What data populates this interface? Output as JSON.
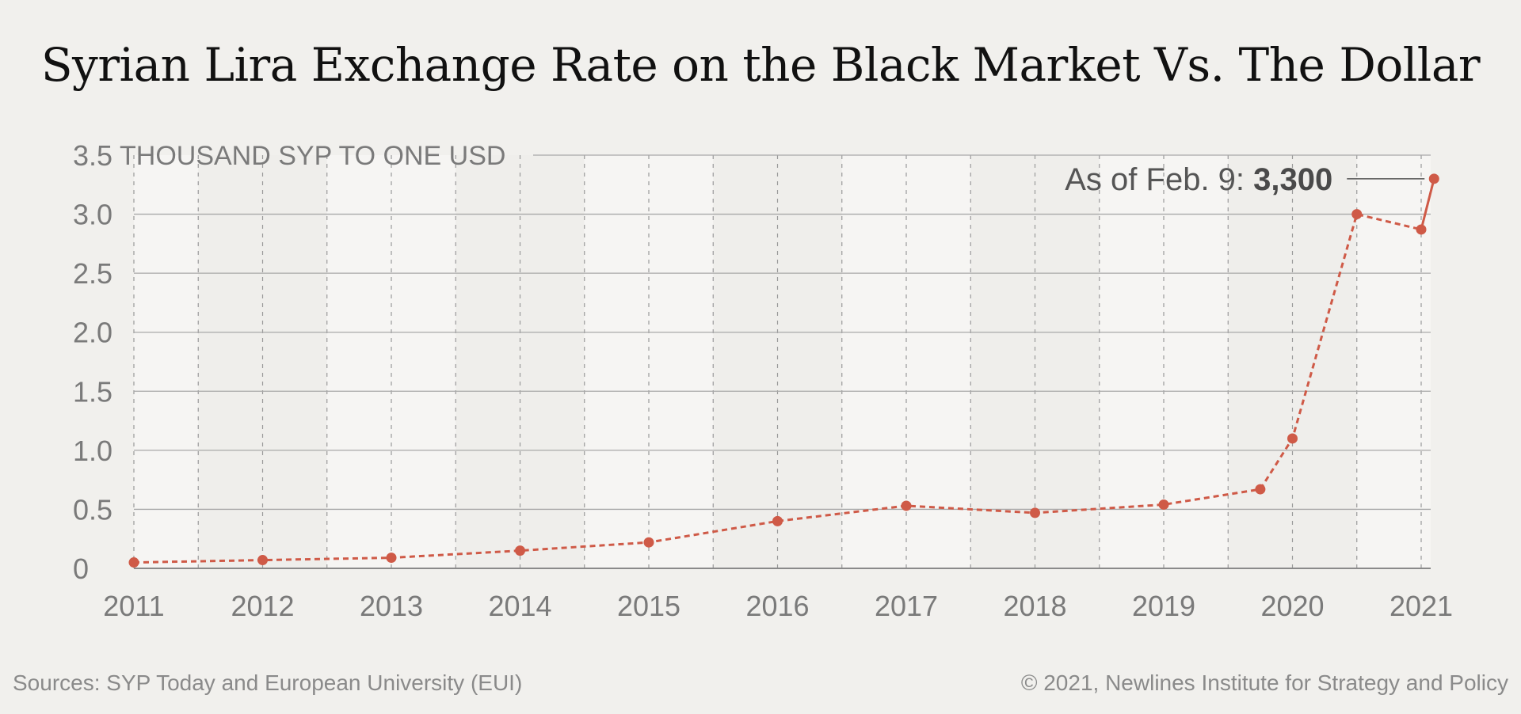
{
  "title": "Syrian Lira Exchange Rate on the Black Market Vs. The Dollar",
  "footer": {
    "source": "Sources: SYP Today and European University (EUI)",
    "copyright": "© 2021, Newlines Institute for Strategy and Policy"
  },
  "colors": {
    "background": "#f1f0ed",
    "band_light": "#f6f5f3",
    "band_dark": "#efeeeb",
    "line": "#cf5a47",
    "grid": "#a8a8a8",
    "text": "#7a7a7a"
  },
  "chart_data": {
    "type": "line",
    "title": "Syrian Lira Exchange Rate on the Black Market Vs. The Dollar",
    "ylabel": "THOUSAND SYP TO ONE USD",
    "xlim": [
      2011,
      2021.1
    ],
    "ylim": [
      0,
      3.5
    ],
    "x_ticks": [
      2011,
      2012,
      2013,
      2014,
      2015,
      2016,
      2017,
      2018,
      2019,
      2020,
      2021
    ],
    "x_tick_labels": [
      "2011",
      "2012",
      "2013",
      "2014",
      "2015",
      "2016",
      "2017",
      "2018",
      "2019",
      "2020",
      "2021"
    ],
    "y_ticks": [
      0,
      0.5,
      1.0,
      1.5,
      2.0,
      2.5,
      3.0,
      3.5
    ],
    "y_tick_labels": [
      "0",
      "0.5",
      "1.0",
      "1.5",
      "2.0",
      "2.5",
      "3.0",
      "3.5"
    ],
    "grid": true,
    "series": [
      {
        "x": [
          2011,
          2012,
          2013,
          2014,
          2015,
          2016,
          2017,
          2018,
          2019,
          2019.75,
          2020,
          2020.5,
          2021,
          2021.1
        ],
        "values": [
          0.05,
          0.07,
          0.09,
          0.15,
          0.22,
          0.4,
          0.53,
          0.47,
          0.54,
          0.67,
          1.1,
          3.0,
          2.87,
          3.3
        ]
      }
    ],
    "annotation": {
      "text": "As of Feb. 9: ",
      "value": "3,300",
      "x": 2021.1,
      "y": 3.3
    }
  }
}
